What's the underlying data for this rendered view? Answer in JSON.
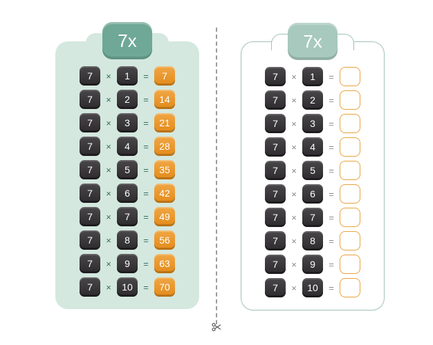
{
  "multiplier": 7,
  "header_label": "7x",
  "symbols": {
    "times": "×",
    "equals": "="
  },
  "colors": {
    "card_left_bg": "#d4e8df",
    "card_right_bg": "#ffffff",
    "card_right_border": "#9ec2b7",
    "header_left_bg": "#6fa896",
    "header_right_bg": "#a7c9be",
    "tile_dark_top": "#4a474a",
    "tile_dark_bottom": "#2d2a2d",
    "tile_answer_top": "#f0a745",
    "tile_answer_bottom": "#e38b1a",
    "blank_border": "#e7a23c",
    "op_left": "#3a6b5c",
    "op_right": "#888888",
    "cut_line": "#9b9b9b"
  },
  "left": {
    "rows": [
      {
        "a": "7",
        "b": "1",
        "ans": "7"
      },
      {
        "a": "7",
        "b": "2",
        "ans": "14"
      },
      {
        "a": "7",
        "b": "3",
        "ans": "21"
      },
      {
        "a": "7",
        "b": "4",
        "ans": "28"
      },
      {
        "a": "7",
        "b": "5",
        "ans": "35"
      },
      {
        "a": "7",
        "b": "6",
        "ans": "42"
      },
      {
        "a": "7",
        "b": "7",
        "ans": "49"
      },
      {
        "a": "7",
        "b": "8",
        "ans": "56"
      },
      {
        "a": "7",
        "b": "9",
        "ans": "63"
      },
      {
        "a": "7",
        "b": "10",
        "ans": "70"
      }
    ]
  },
  "right": {
    "rows": [
      {
        "a": "7",
        "b": "1"
      },
      {
        "a": "7",
        "b": "2"
      },
      {
        "a": "7",
        "b": "3"
      },
      {
        "a": "7",
        "b": "4"
      },
      {
        "a": "7",
        "b": "5"
      },
      {
        "a": "7",
        "b": "6"
      },
      {
        "a": "7",
        "b": "7"
      },
      {
        "a": "7",
        "b": "8"
      },
      {
        "a": "7",
        "b": "9"
      },
      {
        "a": "7",
        "b": "10"
      }
    ]
  }
}
